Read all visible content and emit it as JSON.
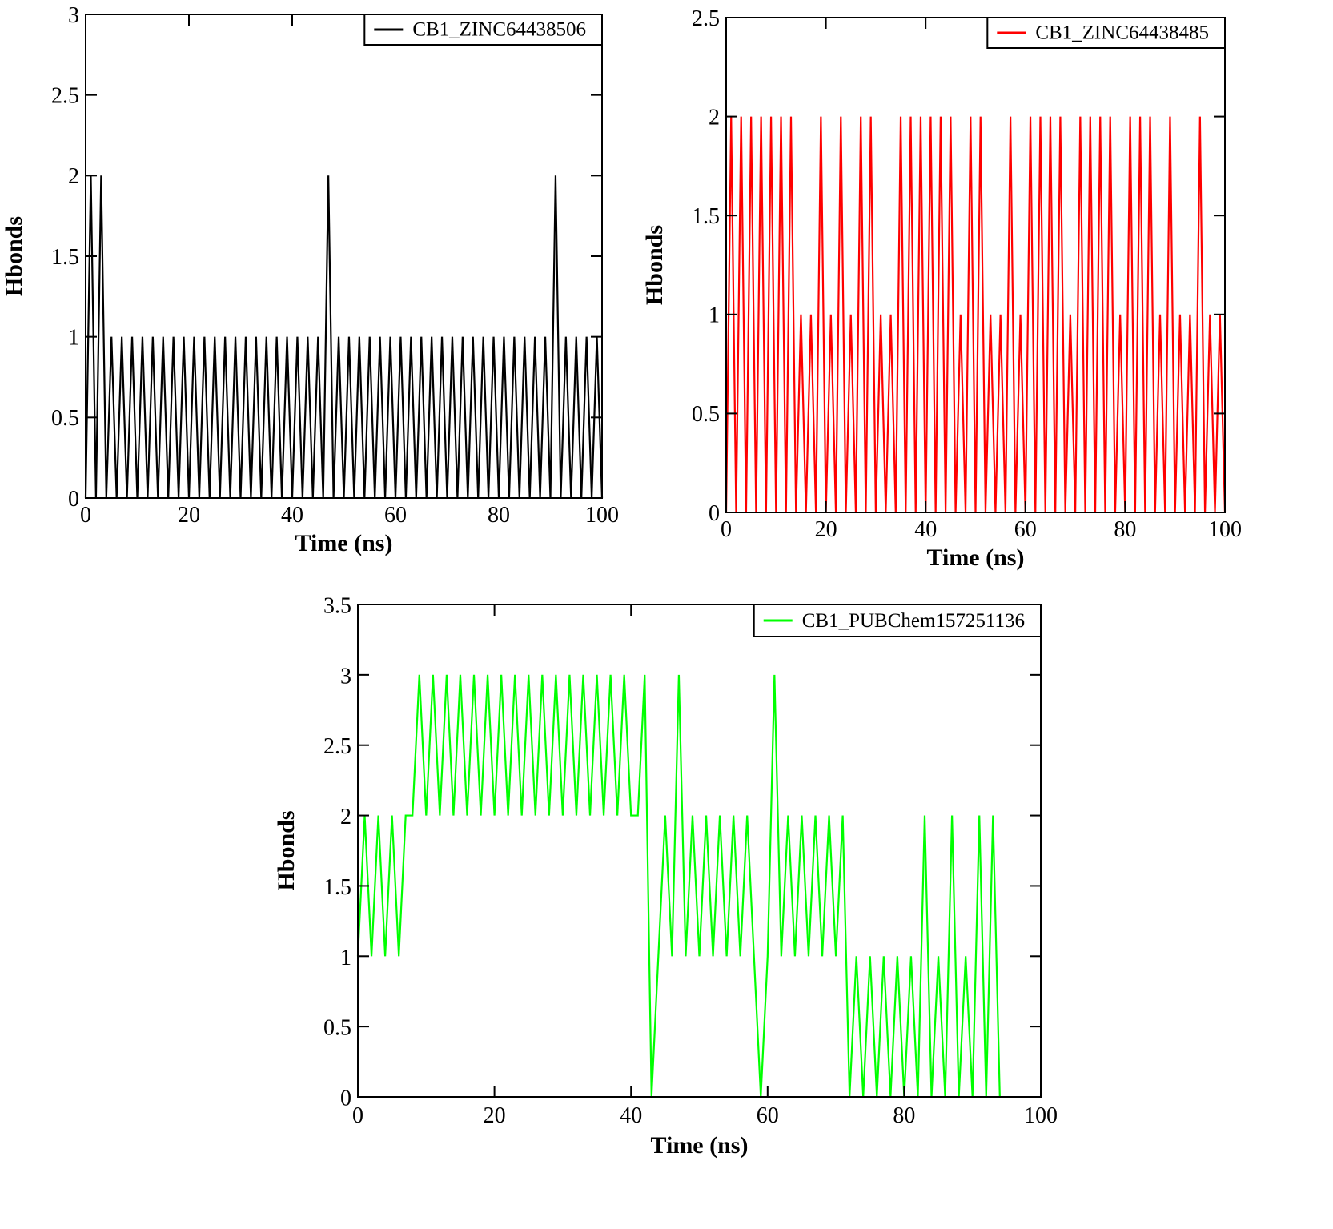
{
  "chart_data": [
    {
      "type": "line",
      "xlabel": "Time (ns)",
      "ylabel": "Hbonds",
      "legend": "upper right",
      "x": [
        0,
        1,
        2,
        3,
        4,
        5,
        6,
        7,
        8,
        9,
        10,
        11,
        12,
        13,
        14,
        15,
        16,
        17,
        18,
        19,
        20,
        21,
        22,
        23,
        24,
        25,
        26,
        27,
        28,
        29,
        30,
        31,
        32,
        33,
        34,
        35,
        36,
        37,
        38,
        39,
        40,
        41,
        42,
        43,
        44,
        45,
        46,
        47,
        48,
        49,
        50,
        51,
        52,
        53,
        54,
        55,
        56,
        57,
        58,
        59,
        60,
        61,
        62,
        63,
        64,
        65,
        66,
        67,
        68,
        69,
        70,
        71,
        72,
        73,
        74,
        75,
        76,
        77,
        78,
        79,
        80,
        81,
        82,
        83,
        84,
        85,
        86,
        87,
        88,
        89,
        90,
        91,
        92,
        93,
        94,
        95,
        96,
        97,
        98,
        99,
        100
      ],
      "series": [
        {
          "name": "CB1_ZINC64438506",
          "color": "#000000",
          "values": [
            0,
            2,
            0,
            2,
            0,
            1,
            0,
            1,
            0,
            1,
            0,
            1,
            0,
            1,
            0,
            1,
            0,
            1,
            0,
            1,
            0,
            1,
            0,
            1,
            0,
            1,
            0,
            1,
            0,
            1,
            0,
            1,
            0,
            1,
            0,
            1,
            0,
            1,
            0,
            1,
            0,
            1,
            0,
            1,
            0,
            1,
            0,
            2,
            0,
            1,
            0,
            1,
            0,
            1,
            0,
            1,
            0,
            1,
            0,
            1,
            0,
            1,
            0,
            1,
            0,
            1,
            0,
            1,
            0,
            1,
            0,
            1,
            0,
            1,
            0,
            1,
            0,
            1,
            0,
            1,
            0,
            1,
            0,
            1,
            0,
            1,
            0,
            1,
            0,
            1,
            0,
            2,
            0,
            1,
            0,
            1,
            0,
            1,
            0,
            1,
            0
          ]
        }
      ],
      "xlim": [
        0,
        100
      ],
      "ylim": [
        0,
        3
      ],
      "xticks": [
        0,
        20,
        40,
        60,
        80,
        100
      ],
      "yticks": [
        0,
        0.5,
        1,
        1.5,
        2,
        2.5,
        3
      ]
    },
    {
      "type": "line",
      "xlabel": "Time (ns)",
      "ylabel": "Hbonds",
      "legend": "upper right",
      "x": [
        0,
        1,
        2,
        3,
        4,
        5,
        6,
        7,
        8,
        9,
        10,
        11,
        12,
        13,
        14,
        15,
        16,
        17,
        18,
        19,
        20,
        21,
        22,
        23,
        24,
        25,
        26,
        27,
        28,
        29,
        30,
        31,
        32,
        33,
        34,
        35,
        36,
        37,
        38,
        39,
        40,
        41,
        42,
        43,
        44,
        45,
        46,
        47,
        48,
        49,
        50,
        51,
        52,
        53,
        54,
        55,
        56,
        57,
        58,
        59,
        60,
        61,
        62,
        63,
        64,
        65,
        66,
        67,
        68,
        69,
        70,
        71,
        72,
        73,
        74,
        75,
        76,
        77,
        78,
        79,
        80,
        81,
        82,
        83,
        84,
        85,
        86,
        87,
        88,
        89,
        90,
        91,
        92,
        93,
        94,
        95,
        96,
        97,
        98,
        99,
        100
      ],
      "series": [
        {
          "name": "CB1_ZINC64438485",
          "color": "#ff0000",
          "values": [
            0,
            2,
            0,
            2,
            0,
            2,
            0,
            2,
            0,
            2,
            0,
            2,
            0,
            2,
            0,
            1,
            0,
            1,
            0,
            2,
            0,
            1,
            0,
            2,
            0,
            1,
            0,
            2,
            0,
            2,
            0,
            1,
            0,
            1,
            0,
            2,
            0,
            2,
            0,
            2,
            0,
            2,
            0,
            2,
            0,
            2,
            0,
            1,
            0,
            2,
            0,
            2,
            0,
            1,
            0,
            1,
            0,
            2,
            0,
            1,
            0,
            2,
            0,
            2,
            0,
            2,
            0,
            2,
            0,
            1,
            0,
            2,
            0,
            2,
            0,
            2,
            0,
            2,
            0,
            1,
            0,
            2,
            0,
            2,
            0,
            2,
            0,
            1,
            0,
            2,
            0,
            1,
            0,
            1,
            0,
            2,
            0,
            1,
            0,
            1,
            0
          ]
        }
      ],
      "xlim": [
        0,
        100
      ],
      "ylim": [
        0,
        2.5
      ],
      "xticks": [
        0,
        20,
        40,
        60,
        80,
        100
      ],
      "yticks": [
        0,
        0.5,
        1,
        1.5,
        2,
        2.5
      ]
    },
    {
      "type": "line",
      "xlabel": "Time (ns)",
      "ylabel": "Hbonds",
      "legend": "upper right",
      "x": [
        0,
        1,
        2,
        3,
        4,
        5,
        6,
        7,
        8,
        9,
        10,
        11,
        12,
        13,
        14,
        15,
        16,
        17,
        18,
        19,
        20,
        21,
        22,
        23,
        24,
        25,
        26,
        27,
        28,
        29,
        30,
        31,
        32,
        33,
        34,
        35,
        36,
        37,
        38,
        39,
        40,
        41,
        42,
        43,
        44,
        45,
        46,
        47,
        48,
        49,
        50,
        51,
        52,
        53,
        54,
        55,
        56,
        57,
        58,
        59,
        60,
        61,
        62,
        63,
        64,
        65,
        66,
        67,
        68,
        69,
        70,
        71,
        72,
        73,
        74,
        75,
        76,
        77,
        78,
        79,
        80,
        81,
        82,
        83,
        84,
        85,
        86,
        87,
        88,
        89,
        90,
        91,
        92,
        93,
        94
      ],
      "series": [
        {
          "name": "CB1_PUBChem157251136",
          "color": "#00ff00",
          "values": [
            1,
            2,
            1,
            2,
            1,
            2,
            1,
            2,
            2,
            3,
            2,
            3,
            2,
            3,
            2,
            3,
            2,
            3,
            2,
            3,
            2,
            3,
            2,
            3,
            2,
            3,
            2,
            3,
            2,
            3,
            2,
            3,
            2,
            3,
            2,
            3,
            2,
            3,
            2,
            3,
            2,
            2,
            3,
            0,
            1,
            2,
            1,
            3,
            1,
            2,
            1,
            2,
            1,
            2,
            1,
            2,
            1,
            2,
            1,
            0,
            1,
            3,
            1,
            2,
            1,
            2,
            1,
            2,
            1,
            2,
            1,
            2,
            0,
            1,
            0,
            1,
            0,
            1,
            0,
            1,
            0,
            1,
            0,
            2,
            0,
            1,
            0,
            2,
            0,
            1,
            0,
            2,
            0,
            2,
            0
          ]
        }
      ],
      "xlim": [
        0,
        100
      ],
      "ylim": [
        0,
        3.5
      ],
      "xticks": [
        0,
        20,
        40,
        60,
        80,
        100
      ],
      "yticks": [
        0,
        0.5,
        1,
        1.5,
        2,
        2.5,
        3,
        3.5
      ]
    }
  ]
}
